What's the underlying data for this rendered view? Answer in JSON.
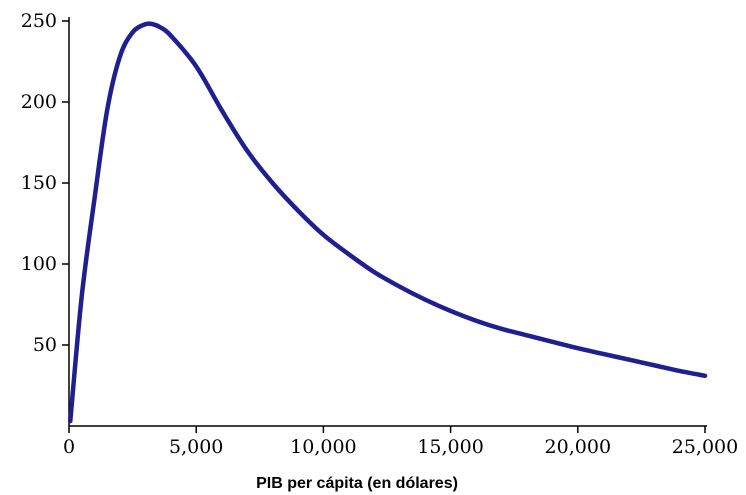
{
  "chart_data": {
    "type": "line",
    "title": "",
    "xlabel": "PIB per cápita (en dólares)",
    "ylabel": "",
    "xlim": [
      0,
      25000
    ],
    "ylim": [
      0,
      250
    ],
    "x_ticks": [
      0,
      5000,
      10000,
      15000,
      20000,
      25000
    ],
    "x_tick_labels": [
      "0",
      "5,000",
      "10,000",
      "15,000",
      "20,000",
      "25,000"
    ],
    "y_ticks": [
      50,
      100,
      150,
      200,
      250
    ],
    "y_tick_labels": [
      "50",
      "100",
      "150",
      "200",
      "250"
    ],
    "grid": false,
    "line_color": "#1f1f8f",
    "series": [
      {
        "x": [
          50,
          500,
          1000,
          1500,
          2000,
          2500,
          3000,
          3300,
          3600,
          4000,
          5000,
          6000,
          7000,
          8000,
          9000,
          10000,
          11000,
          12000,
          13000,
          14000,
          15000,
          16000,
          17000,
          18000,
          19000,
          20000,
          21000,
          22000,
          23000,
          24000,
          25000
        ],
        "y": [
          3,
          80,
          140,
          195,
          228,
          243,
          248,
          248,
          246,
          241,
          222,
          195,
          170,
          150,
          133,
          118,
          106,
          95,
          86,
          78,
          71,
          65,
          60,
          56,
          52,
          48,
          44.5,
          41,
          37.5,
          34,
          31
        ]
      }
    ]
  }
}
